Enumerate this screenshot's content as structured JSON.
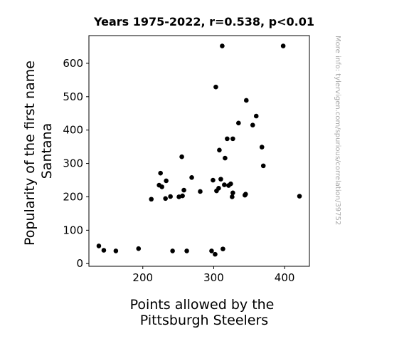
{
  "chart_data": {
    "type": "scatter",
    "title": "Years 1975-2022, r=0.538, p<0.01",
    "xlabel": [
      "Points allowed by the",
      "Pittsburgh Steelers"
    ],
    "ylabel": [
      "Popularity of the first name",
      "Santana"
    ],
    "credit": "More info: tylervigen.com/spurious/correlation/39752",
    "xlim": [
      124,
      435
    ],
    "ylim": [
      -8,
      683
    ],
    "xticks": [
      200,
      300,
      400
    ],
    "yticks": [
      0,
      100,
      200,
      300,
      400,
      500,
      600
    ],
    "grid": false,
    "point_color": "#000000",
    "points": [
      {
        "x": 138,
        "y": 53
      },
      {
        "x": 145,
        "y": 40
      },
      {
        "x": 162,
        "y": 38
      },
      {
        "x": 194,
        "y": 45
      },
      {
        "x": 212,
        "y": 193
      },
      {
        "x": 223,
        "y": 235
      },
      {
        "x": 225,
        "y": 271
      },
      {
        "x": 227,
        "y": 230
      },
      {
        "x": 232,
        "y": 195
      },
      {
        "x": 233,
        "y": 248
      },
      {
        "x": 239,
        "y": 201
      },
      {
        "x": 242,
        "y": 38
      },
      {
        "x": 251,
        "y": 200
      },
      {
        "x": 255,
        "y": 320
      },
      {
        "x": 256,
        "y": 203
      },
      {
        "x": 258,
        "y": 220
      },
      {
        "x": 262,
        "y": 38
      },
      {
        "x": 269,
        "y": 258
      },
      {
        "x": 281,
        "y": 216
      },
      {
        "x": 297,
        "y": 38
      },
      {
        "x": 299,
        "y": 250
      },
      {
        "x": 302,
        "y": 28
      },
      {
        "x": 303,
        "y": 529
      },
      {
        "x": 304,
        "y": 218
      },
      {
        "x": 307,
        "y": 226
      },
      {
        "x": 308,
        "y": 340
      },
      {
        "x": 310,
        "y": 253
      },
      {
        "x": 312,
        "y": 652
      },
      {
        "x": 313,
        "y": 44
      },
      {
        "x": 315,
        "y": 236
      },
      {
        "x": 316,
        "y": 316
      },
      {
        "x": 319,
        "y": 374
      },
      {
        "x": 321,
        "y": 234
      },
      {
        "x": 324,
        "y": 239
      },
      {
        "x": 326,
        "y": 200
      },
      {
        "x": 327,
        "y": 212
      },
      {
        "x": 327,
        "y": 374
      },
      {
        "x": 335,
        "y": 421
      },
      {
        "x": 344,
        "y": 205
      },
      {
        "x": 345,
        "y": 208
      },
      {
        "x": 346,
        "y": 489
      },
      {
        "x": 355,
        "y": 415
      },
      {
        "x": 360,
        "y": 442
      },
      {
        "x": 368,
        "y": 349
      },
      {
        "x": 370,
        "y": 293
      },
      {
        "x": 398,
        "y": 652
      },
      {
        "x": 421,
        "y": 202
      }
    ]
  }
}
